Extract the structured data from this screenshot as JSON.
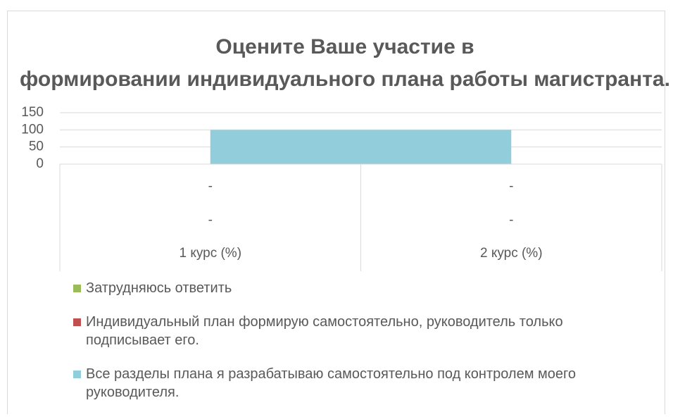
{
  "chart_data": {
    "type": "area",
    "title": "Оцените Ваше участие в формировании индивидуального плана работы магистранта.",
    "categories": [
      "1 курс (%)",
      "2 курс (%)"
    ],
    "category_sublabels": [
      [
        "-",
        "-"
      ],
      [
        "-",
        "-"
      ]
    ],
    "series": [
      {
        "name": "Затрудняюсь ответить",
        "color": "#9bbb59",
        "values": [
          0,
          0
        ]
      },
      {
        "name": "Индивидуальный план формирую самостоятельно, руководитель только подписывает его.",
        "color": "#c0504d",
        "values": [
          0,
          0
        ]
      },
      {
        "name": "Все разделы плана я разрабатываю самостоятельно под контролем моего руководителя.",
        "color": "#92cddc",
        "values": [
          100,
          100
        ]
      }
    ],
    "ylim": [
      0,
      150
    ],
    "yticks": [
      0,
      50,
      100,
      150
    ],
    "grid": true
  }
}
